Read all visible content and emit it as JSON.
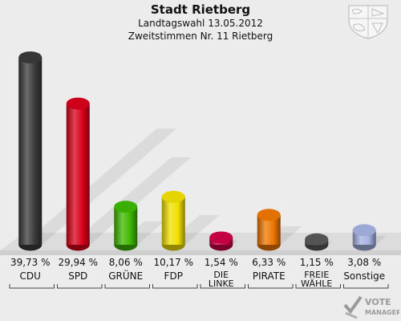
{
  "header": {
    "title": "Stadt Rietberg",
    "subtitle1": "Landtagswahl 13.05.2012",
    "subtitle2": "Zweitstimmen Nr. 11 Rietberg"
  },
  "logo": {
    "line1": "VOTE",
    "line2": "MANAGER"
  },
  "chart_data": {
    "type": "bar",
    "categories": [
      "CDU",
      "SPD",
      "GRÜNE",
      "FDP",
      "DIE LINKE",
      "PIRATE",
      "FREIE WÄHLE",
      "Sonstige"
    ],
    "category_lines": [
      [
        "CDU"
      ],
      [
        "SPD"
      ],
      [
        "GRÜNE"
      ],
      [
        "FDP"
      ],
      [
        "DIE",
        "LINKE"
      ],
      [
        "PIRATE"
      ],
      [
        "FREIE",
        "WÄHLE"
      ],
      [
        "Sonstige"
      ]
    ],
    "values": [
      39.73,
      29.94,
      8.06,
      10.17,
      1.54,
      6.33,
      1.15,
      3.08
    ],
    "value_labels": [
      "39,73 %",
      "29,94 %",
      "8,06 %",
      "10,17 %",
      "1,54 %",
      "6,33 %",
      "1,15 %",
      "3,08 %"
    ],
    "colors": [
      "#3a3a3a",
      "#d9001a",
      "#3db800",
      "#f0e000",
      "#cc0045",
      "#ee7700",
      "#585858",
      "#a4b2e0"
    ],
    "ylim": [
      0,
      40
    ],
    "grid": false,
    "legend": "none"
  }
}
